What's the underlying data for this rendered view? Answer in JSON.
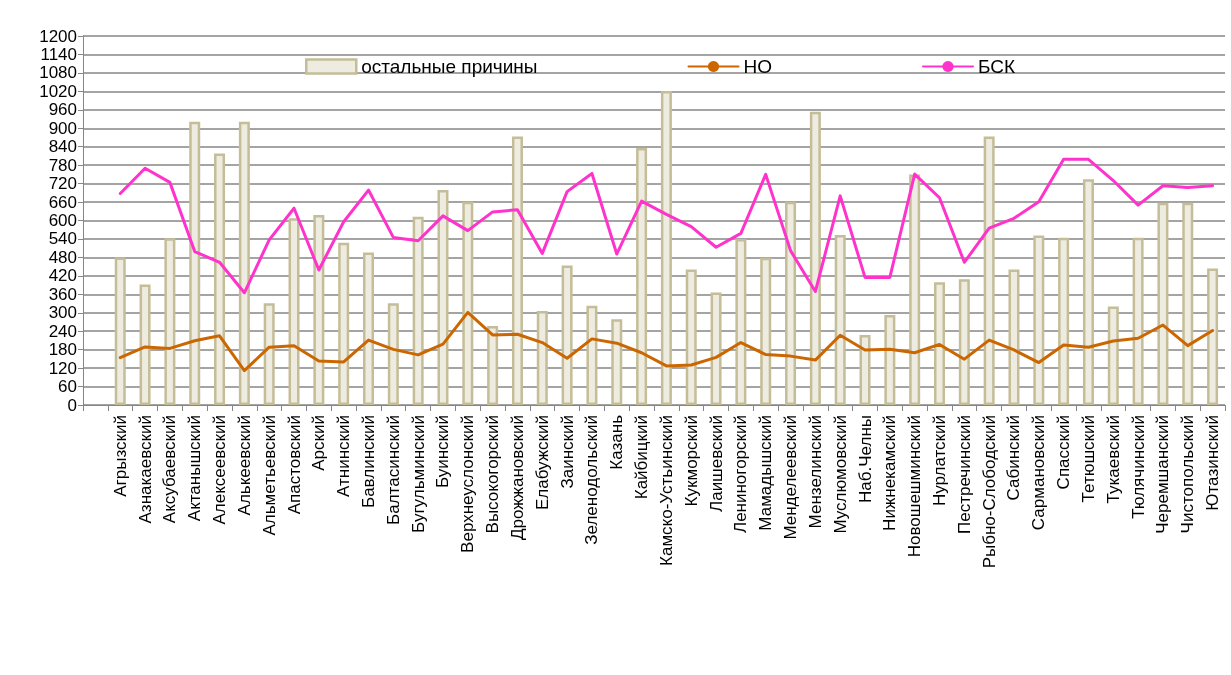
{
  "chart_data": {
    "type": "bar",
    "categories": [
      null,
      "Агрызский",
      "Азнакаевский",
      "Аксубаевский",
      "Актанышский",
      "Алексеевский",
      "Алькеевский",
      "Альметьевский",
      "Апастовский",
      "Арский",
      "Атнинский",
      "Бавлинский",
      "Балтасинский",
      "Бугульминский",
      "Буинский",
      "Верхнеуслонский",
      "Высокогорский",
      "Дрожжановский",
      "Елабужский",
      "Заинский",
      "Зеленодольский",
      "Казань",
      "Кайбицкий",
      "Камско-Устьинский",
      "Кукморский",
      "Лаишевский",
      "Лениногорский",
      "Мамадышский",
      "Менделеевский",
      "Мензелинский",
      "Муслюмовский",
      "Наб.Челны",
      "Нижнекамский",
      "Новошешминский",
      "Нурлатский",
      "Пестречинский",
      "Рыбно-Слободский",
      "Сабинский",
      "Сармановский",
      "Спасский",
      "Тетюшский",
      "Тукаевский",
      "Тюлячинский",
      "Черемшанский",
      "Чистопольский",
      "Ютазинский"
    ],
    "series": [
      {
        "name": "остальные причины",
        "color": "#eeece1",
        "values": [
          null,
          480,
          392,
          542,
          921,
          818,
          921,
          331,
          607,
          618,
          528,
          496,
          331,
          612,
          699,
          661,
          257,
          873,
          306,
          454,
          323,
          279,
          836,
          1021,
          441,
          366,
          540,
          479,
          661,
          954,
          553,
          228,
          293,
          750,
          399,
          409,
          873,
          441,
          551,
          544,
          734,
          320,
          544,
          658,
          658,
          444
        ]
      },
      {
        "name": "НО",
        "type": "line",
        "color": "#cc6600",
        "values": [
          null,
          154,
          189,
          184,
          209,
          225,
          112,
          188,
          193,
          143,
          140,
          211,
          181,
          163,
          198,
          301,
          228,
          230,
          203,
          152,
          215,
          201,
          170,
          127,
          130,
          155,
          203,
          164,
          159,
          146,
          227,
          179,
          181,
          170,
          197,
          149,
          211,
          179,
          138,
          195,
          188,
          208,
          217,
          260,
          193,
          242
        ]
      },
      {
        "name": "БСК",
        "type": "line",
        "color": "#ff33cc",
        "values": [
          null,
          688,
          770,
          724,
          499,
          464,
          365,
          537,
          640,
          439,
          596,
          699,
          545,
          534,
          615,
          567,
          628,
          635,
          493,
          694,
          753,
          491,
          663,
          620,
          580,
          513,
          558,
          750,
          502,
          369,
          680,
          415,
          415,
          751,
          674,
          464,
          575,
          607,
          661,
          799,
          799,
          730,
          650,
          713,
          707,
          713
        ]
      }
    ],
    "ylim": [
      0,
      1200
    ],
    "yticks": [
      0,
      60,
      120,
      180,
      240,
      300,
      360,
      420,
      480,
      540,
      600,
      660,
      720,
      780,
      840,
      900,
      960,
      1020,
      1080,
      1140,
      1200
    ],
    "grid": "y",
    "legend": "top",
    "marker": "none",
    "line_style": "solid"
  }
}
